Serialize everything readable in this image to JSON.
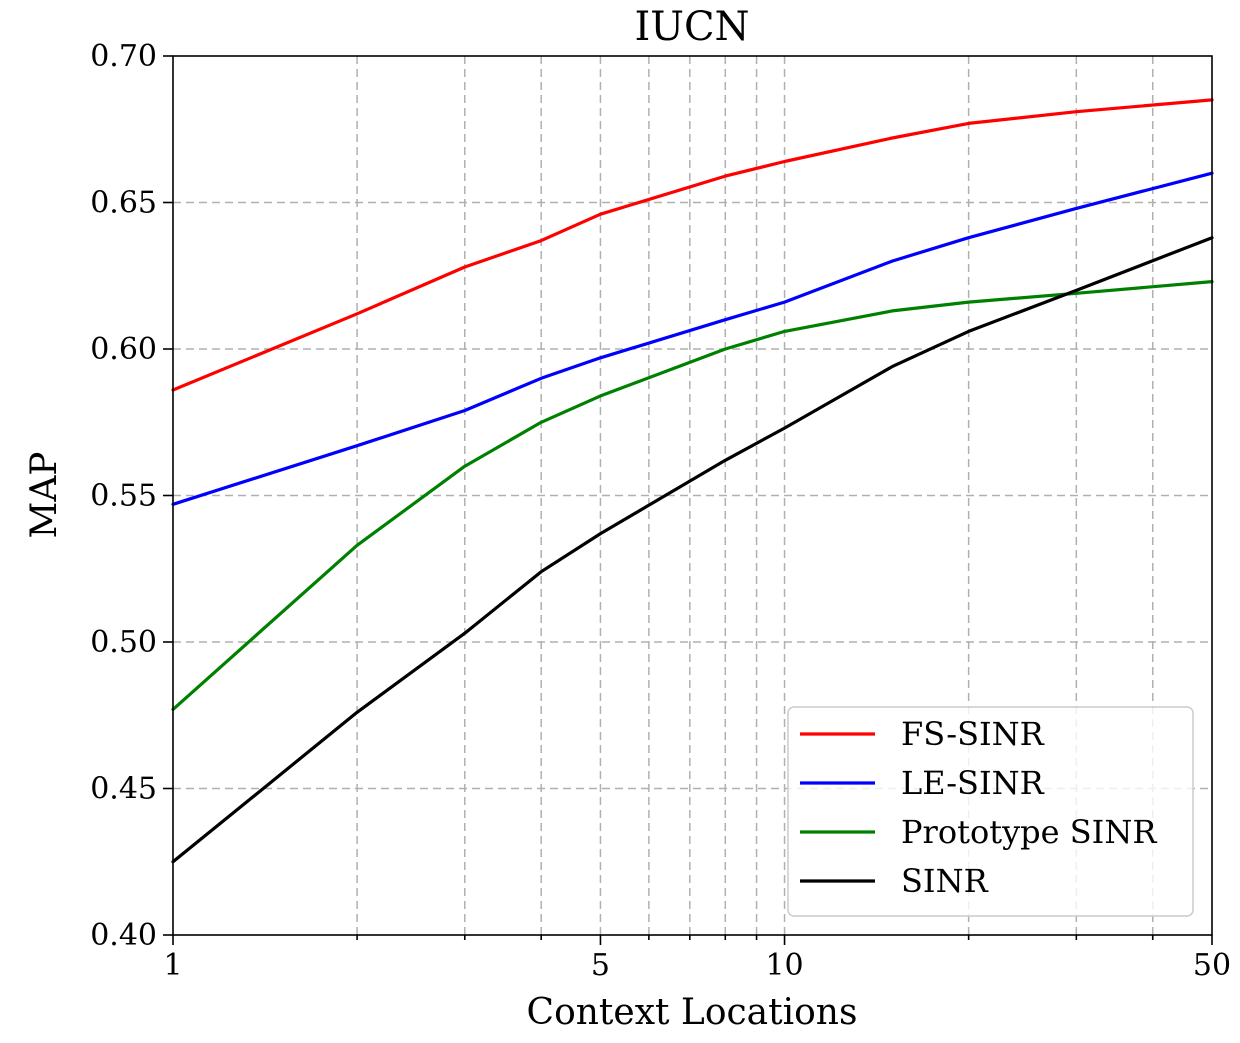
{
  "chart_data": {
    "type": "line",
    "title": "IUCN",
    "xlabel": "Context Locations",
    "ylabel": "MAP",
    "xscale": "log",
    "xlim": [
      1,
      50
    ],
    "ylim": [
      0.4,
      0.7
    ],
    "grid": "major and minor, dashed",
    "legend_position": "lower-right",
    "x_ticks": [
      {
        "value": 1,
        "label": "1"
      },
      {
        "value": 5,
        "label": "5"
      },
      {
        "value": 10,
        "label": "10"
      },
      {
        "value": 50,
        "label": "50"
      }
    ],
    "x_minor_ticks": [
      2,
      3,
      4,
      6,
      7,
      8,
      9,
      20,
      30,
      40
    ],
    "y_ticks": [
      {
        "value": 0.4,
        "label": "0.40"
      },
      {
        "value": 0.45,
        "label": "0.45"
      },
      {
        "value": 0.5,
        "label": "0.50"
      },
      {
        "value": 0.55,
        "label": "0.55"
      },
      {
        "value": 0.6,
        "label": "0.60"
      },
      {
        "value": 0.65,
        "label": "0.65"
      },
      {
        "value": 0.7,
        "label": "0.70"
      }
    ],
    "x": [
      1,
      2,
      3,
      4,
      5,
      8,
      10,
      15,
      20,
      30,
      50
    ],
    "series": [
      {
        "name": "FS-SINR",
        "color": "#ff0000",
        "values": [
          0.586,
          0.612,
          0.628,
          0.637,
          0.646,
          0.659,
          0.664,
          0.672,
          0.677,
          0.681,
          0.685
        ]
      },
      {
        "name": "LE-SINR",
        "color": "#0000ff",
        "values": [
          0.547,
          0.567,
          0.579,
          0.59,
          0.597,
          0.61,
          0.616,
          0.63,
          0.638,
          0.648,
          0.66
        ]
      },
      {
        "name": "Prototype SINR",
        "color": "#008000",
        "values": [
          0.477,
          0.533,
          0.56,
          0.575,
          0.584,
          0.6,
          0.606,
          0.613,
          0.616,
          0.619,
          0.623
        ]
      },
      {
        "name": "SINR",
        "color": "#000000",
        "values": [
          0.425,
          0.476,
          0.503,
          0.524,
          0.537,
          0.562,
          0.573,
          0.594,
          0.606,
          0.62,
          0.638
        ]
      }
    ]
  }
}
